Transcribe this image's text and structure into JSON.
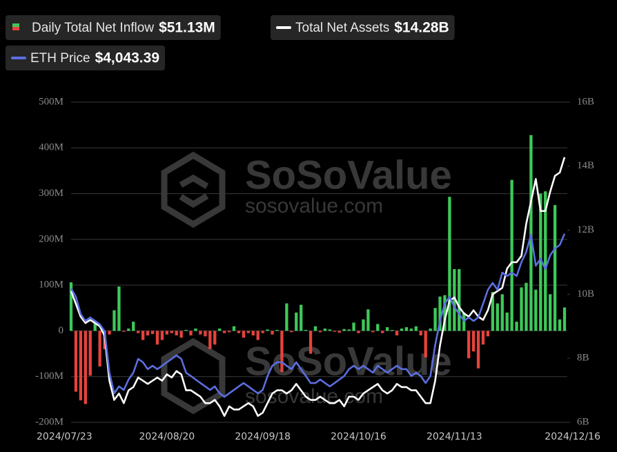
{
  "chart_data": {
    "type": "bar_line",
    "watermark": [
      "SoSoValue",
      "sosovalue.com"
    ],
    "categories": [
      "2024/07/23",
      null,
      null,
      null,
      null,
      null,
      null,
      null,
      null,
      null,
      null,
      null,
      null,
      null,
      null,
      null,
      null,
      null,
      null,
      null,
      "2024/08/20",
      null,
      null,
      null,
      null,
      null,
      null,
      null,
      null,
      null,
      null,
      null,
      null,
      null,
      null,
      null,
      null,
      null,
      null,
      null,
      "2024/09/18",
      null,
      null,
      null,
      null,
      null,
      null,
      null,
      null,
      null,
      null,
      null,
      null,
      null,
      null,
      null,
      null,
      null,
      null,
      null,
      "2024/10/16",
      null,
      null,
      null,
      null,
      null,
      null,
      null,
      null,
      null,
      null,
      null,
      null,
      null,
      null,
      null,
      null,
      null,
      null,
      null,
      "2024/11/13",
      null,
      null,
      null,
      null,
      null,
      null,
      null,
      null,
      null,
      null,
      null,
      null,
      null,
      null,
      null,
      null,
      null,
      null,
      null,
      null,
      null,
      null,
      "2024/12/16"
    ],
    "series": [
      {
        "name": "Daily Total Net Inflow",
        "legend_value": "$51.13M",
        "type": "bar",
        "axis": "y",
        "color": "#3ec85a",
        "negative_color": "#e5433d",
        "values": [
          106,
          -133,
          -152,
          -160,
          -98,
          20,
          -78,
          -40,
          -8,
          45,
          97,
          -2,
          5,
          20,
          -5,
          -20,
          -10,
          -7,
          -30,
          -20,
          -8,
          -5,
          -10,
          -15,
          2,
          -10,
          5,
          -8,
          -12,
          -40,
          -30,
          5,
          -5,
          -3,
          10,
          -5,
          -15,
          -5,
          -10,
          -20,
          -5,
          3,
          -8,
          2,
          -90,
          60,
          -3,
          40,
          57,
          2,
          -50,
          10,
          -3,
          5,
          3,
          -2,
          -4,
          4,
          3,
          18,
          -5,
          25,
          47,
          -3,
          15,
          -5,
          8,
          2,
          -10,
          5,
          8,
          5,
          10,
          -10,
          -58,
          5,
          50,
          75,
          78,
          293,
          135,
          135,
          40,
          -60,
          -45,
          -82,
          -30,
          -12,
          85,
          60,
          80,
          40,
          330,
          20,
          95,
          105,
          428,
          90,
          300,
          305,
          80,
          275,
          25,
          51.13
        ]
      },
      {
        "name": "Total Net Assets",
        "legend_value": "$14.28B",
        "type": "line",
        "axis": "y2",
        "color": "#ffffff",
        "values": [
          10.1,
          9.7,
          9.3,
          9.1,
          9.2,
          9.1,
          9.0,
          8.7,
          7.3,
          6.7,
          6.9,
          6.6,
          7.0,
          7.1,
          7.4,
          7.3,
          7.2,
          7.3,
          7.4,
          7.3,
          7.5,
          7.4,
          7.6,
          7.5,
          7.0,
          7.0,
          6.9,
          6.8,
          6.6,
          6.6,
          6.7,
          6.5,
          6.2,
          6.5,
          6.4,
          6.4,
          6.5,
          6.6,
          6.5,
          6.2,
          6.3,
          6.6,
          6.9,
          7.0,
          7.0,
          6.9,
          7.0,
          7.2,
          7.0,
          6.8,
          6.7,
          6.7,
          6.8,
          6.7,
          6.6,
          6.6,
          6.7,
          6.5,
          6.8,
          6.8,
          6.7,
          6.9,
          7.0,
          7.1,
          7.2,
          7.0,
          6.9,
          7.0,
          7.2,
          7.1,
          7.1,
          7.0,
          7.0,
          6.8,
          6.6,
          6.6,
          7.3,
          8.4,
          9.2,
          9.8,
          9.9,
          9.6,
          9.4,
          9.3,
          9.5,
          9.3,
          9.2,
          9.5,
          10.0,
          10.1,
          10.2,
          10.8,
          11.0,
          11.0,
          11.2,
          12.2,
          12.9,
          13.6,
          12.6,
          12.6,
          13.2,
          13.7,
          13.8,
          14.28
        ]
      },
      {
        "name": "ETH Price",
        "legend_value": "$4,043.39",
        "type": "line",
        "axis": "y3",
        "color": "#5b6fe0",
        "values": [
          3480,
          3394,
          3217,
          3145,
          3181,
          3145,
          3110,
          3039,
          2612,
          2399,
          2470,
          2434,
          2541,
          2612,
          2754,
          2719,
          2648,
          2683,
          2648,
          2683,
          2719,
          2754,
          2790,
          2754,
          2612,
          2577,
          2541,
          2505,
          2470,
          2434,
          2470,
          2399,
          2363,
          2399,
          2434,
          2470,
          2505,
          2470,
          2434,
          2399,
          2434,
          2577,
          2683,
          2719,
          2719,
          2683,
          2648,
          2719,
          2648,
          2577,
          2505,
          2505,
          2541,
          2505,
          2470,
          2505,
          2541,
          2577,
          2648,
          2683,
          2648,
          2683,
          2648,
          2612,
          2683,
          2648,
          2612,
          2648,
          2683,
          2648,
          2648,
          2577,
          2612,
          2577,
          2505,
          2577,
          2897,
          3145,
          3323,
          3394,
          3288,
          3217,
          3145,
          3181,
          3145,
          3181,
          3323,
          3466,
          3537,
          3466,
          3643,
          3608,
          3643,
          3608,
          3750,
          3857,
          4034,
          3714,
          3786,
          3679,
          3821,
          3892,
          3928,
          4043.39
        ]
      }
    ],
    "ylim": [
      -200,
      500
    ],
    "yticks": [
      {
        "value": -200,
        "label": "-200M"
      },
      {
        "value": -100,
        "label": "-100M"
      },
      0,
      {
        "value": 100,
        "label": "100M"
      },
      {
        "value": 200,
        "label": "200M"
      },
      {
        "value": 300,
        "label": "300M"
      },
      {
        "value": 400,
        "label": "400M"
      },
      {
        "value": 500,
        "label": "500M"
      }
    ],
    "y2lim": [
      6,
      16
    ],
    "y2ticks": [
      {
        "value": 6,
        "label": "6B"
      },
      {
        "value": 8,
        "label": "8B"
      },
      {
        "value": 10,
        "label": "10B"
      },
      {
        "value": 12,
        "label": "12B"
      },
      {
        "value": 14,
        "label": "14B"
      },
      {
        "value": 16,
        "label": "16B"
      }
    ],
    "y3lim": [
      2100,
      5400
    ],
    "grid": true
  }
}
